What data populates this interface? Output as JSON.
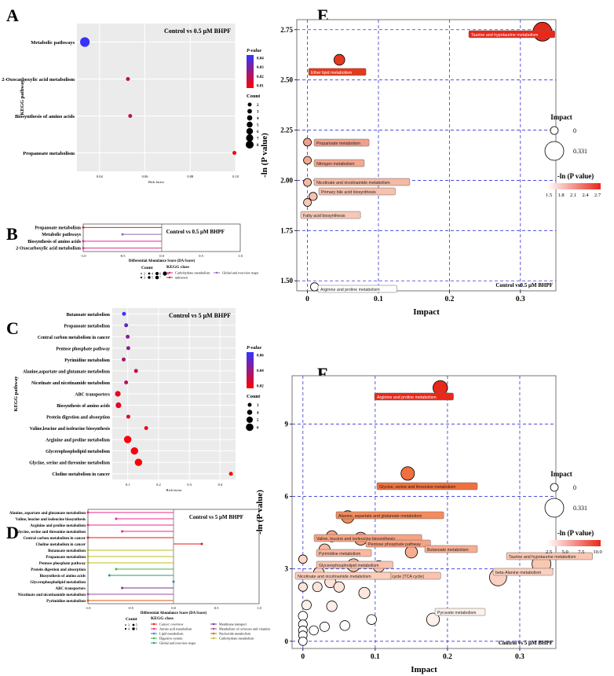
{
  "chart_data": [
    {
      "panel": "A",
      "type": "scatter",
      "subtitle": "Control vs 0.5 μM BHPF",
      "ylabel": "KEGG pathway",
      "xlabel": "Rich factor",
      "xlim": [
        0.03,
        0.1
      ],
      "xticks": [
        "0.04",
        "0.06",
        "0.08",
        "0.10"
      ],
      "categories": [
        "Metabolic pathways",
        "2-Oxocarboxylic acid metabolism",
        "Biosynthesis of amino acids",
        "Propanoate metabolism"
      ],
      "x": [
        0.0335,
        0.0525,
        0.0535,
        0.0995
      ],
      "count": [
        8,
        2,
        2,
        2
      ],
      "pvalue": [
        0.045,
        0.016,
        0.017,
        0.004
      ],
      "legend_p_title": "P-value",
      "legend_p_ticks": [
        "0.04",
        "0.03",
        "0.02",
        "0.01"
      ],
      "legend_count_title": "Count",
      "legend_count_values": [
        "2",
        "3",
        "4",
        "5",
        "6",
        "7",
        "8"
      ],
      "colors": {
        "low": "#ff0000",
        "high": "#3333ff"
      }
    },
    {
      "panel": "B",
      "type": "lollipop",
      "subtitle": "Control vs 0.5 μM BHPF",
      "xlabel": "Differential Abundance Score (DA Score)",
      "xlim": [
        -1.0,
        1.0
      ],
      "xticks": [
        "-1.0",
        "-0.5",
        "0.0",
        "0.5",
        "1.0"
      ],
      "categories": [
        "Propanoate metabolism",
        "Metabolic pathways",
        "Biosynthesis of amino acids",
        "2-Oxocarboxylic acid metabolism"
      ],
      "values": [
        -1.0,
        -0.5,
        -1.0,
        -1.0
      ],
      "classes": [
        "unknown",
        "Global and overview maps",
        "Carbohydrate metabolism",
        "Carbohydrate metabolism"
      ],
      "legend_count_title": "Count",
      "legend_count_values": [
        "2",
        "3",
        "4",
        "5",
        "6",
        "7",
        "8"
      ],
      "legend_class_title": "KEGG class",
      "legend_class": [
        {
          "name": "Carbohydrate metabolism",
          "color": "#e7298a"
        },
        {
          "name": "unknown",
          "color": "#d62728"
        },
        {
          "name": "Global and overview maps",
          "color": "#9467bd"
        }
      ]
    },
    {
      "panel": "C",
      "type": "scatter",
      "subtitle": "Control vs 5 μM BHPF",
      "ylabel": "KEGG pathway",
      "xlabel": "Rich factor",
      "xlim": [
        0.05,
        0.45
      ],
      "xticks": [
        "0.1",
        "0.2",
        "0.3",
        "0.4"
      ],
      "categories": [
        "Butanoate metabolism",
        "Propanoate metabolism",
        "Central carbon metabolism in cancer",
        "Pentose phosphate pathway",
        "Pyrimidine metabolism",
        "Alanine,aspartate and glutamate metabolism",
        "Nicotinate and nicotinamide metabolism",
        "ABC transporters",
        "Biosynthesis of amino acids",
        "Protein digestion and absorption",
        "Valine,leucine and isoleucine biosynthesis",
        "Arginine and proline metabolism",
        "Glycerophospholipid metabolism",
        "Glycine, serine and threonine metabolism",
        "Choline metabolism in cancer"
      ],
      "x": [
        0.088,
        0.095,
        0.1,
        0.102,
        0.087,
        0.127,
        0.095,
        0.068,
        0.07,
        0.102,
        0.16,
        0.1,
        0.122,
        0.135,
        0.435
      ],
      "count": [
        3,
        3,
        3,
        3,
        3,
        3,
        3,
        4,
        4,
        3,
        3,
        5,
        5,
        5,
        3
      ],
      "pvalue": [
        0.065,
        0.052,
        0.04,
        0.038,
        0.033,
        0.02,
        0.027,
        0.01,
        0.011,
        0.013,
        0.008,
        0.006,
        0.007,
        0.004,
        0.003
      ],
      "legend_p_title": "P-value",
      "legend_p_ticks": [
        "0.06",
        "0.04",
        "0.02"
      ],
      "legend_count_title": "Count",
      "legend_count_values": [
        "3",
        "4",
        "5",
        "6"
      ],
      "colors": {
        "low": "#ff0000",
        "high": "#3333ff"
      }
    },
    {
      "panel": "D",
      "type": "lollipop",
      "subtitle": "Control vs 5 μM BHPF",
      "xlabel": "Differential Abundance Score (DA Score)",
      "xlim": [
        -1.0,
        1.0
      ],
      "xticks": [
        "-1.0",
        "-0.5",
        "0.0",
        "0.5",
        "1.0"
      ],
      "categories": [
        "Alanine, aspartate and glutamate metabolism",
        "Valine, leucine and isoleucine biosynthesis",
        "Arginine and proline metabolism",
        "Glycine, serine and threonine metabolism",
        "Central carbon metabolism in cancer",
        "Choline metabolism in cancer",
        "Butanoate metabolism",
        "Propanoate metabolism",
        "Pentose phosphate pathway",
        "Protein digestion and absorption",
        "Biosynthesis of amino acids",
        "Glycerophospholipid metabolism",
        "ABC transporters",
        "Nicotinate and nicotinamide metabolism",
        "Pyrimidine metabolism"
      ],
      "values": [
        -1.0,
        -0.67,
        -1.0,
        -0.6,
        -1.0,
        0.33,
        -1.0,
        -1.0,
        -1.0,
        -0.67,
        -0.75,
        0.0,
        -0.6,
        -1.0,
        -1.0
      ],
      "classes": [
        "Amino acid metabolism",
        "Amino acid metabolism",
        "Amino acid metabolism",
        "Amino acid metabolism",
        "Cancer: overview",
        "Cancer: overview",
        "Carbohydrate metabolism",
        "Carbohydrate metabolism",
        "Carbohydrate metabolism",
        "Digestive system",
        "Global and overview maps",
        "Lipid metabolism",
        "Membrane transport",
        "Metabolism of cofactors and vitamins",
        "Nucleotide metabolism"
      ],
      "legend_count_title": "Count",
      "legend_count_values": [
        "3",
        "4",
        "5",
        "6"
      ],
      "legend_class_title": "KEGG class",
      "legend_class": [
        {
          "name": "Cancer: overview",
          "color": "#e41a1c"
        },
        {
          "name": "Amino acid metabolism",
          "color": "#e7298a"
        },
        {
          "name": "Lipid metabolism",
          "color": "#377eb8"
        },
        {
          "name": "Digestive system",
          "color": "#4daf4a"
        },
        {
          "name": "Global and overview maps",
          "color": "#1b9e77"
        },
        {
          "name": "Membrane transport",
          "color": "#7b3294"
        },
        {
          "name": "Metabolism of cofactors and vitamins",
          "color": "#984ea3"
        },
        {
          "name": "Nucleotide metabolism",
          "color": "#d95f02"
        },
        {
          "name": "Carbohydrate metabolism",
          "color": "#bcbd22"
        }
      ]
    },
    {
      "panel": "E",
      "type": "scatter",
      "xlabel": "Impact",
      "ylabel": "-ln (P value)",
      "annotation": "Control vs0.5 μM BHPF",
      "xlim": [
        -0.015,
        0.35
      ],
      "ylim": [
        1.45,
        2.8
      ],
      "xticks": [
        "0",
        "0.1",
        "0.2",
        "0.3"
      ],
      "yticks": [
        "1.50",
        "1.75",
        "2.00",
        "2.25",
        "2.50",
        "2.75"
      ],
      "points": [
        {
          "label": "Taurine and hypotaurine metabolism",
          "x": 0.331,
          "y": 2.74,
          "impact": 0.331,
          "color": "#e8281a"
        },
        {
          "label": "Ether lipid metabolism",
          "x": 0.045,
          "y": 2.6,
          "impact": 0.09,
          "color": "#e33a1e"
        },
        {
          "label": "Propanoate metabolism",
          "x": 0.0,
          "y": 2.19,
          "impact": 0.0,
          "color": "#f0a08a"
        },
        {
          "label": "Nitrogen metabolism",
          "x": 0.0,
          "y": 2.1,
          "impact": 0.0,
          "color": "#f2a88f"
        },
        {
          "label": "Nicotinate and nicotinamide metabolism",
          "x": 0.0,
          "y": 1.99,
          "impact": 0.0,
          "color": "#f5b9a4"
        },
        {
          "label": "Primary bile acid biosynthesis",
          "x": 0.008,
          "y": 1.92,
          "impact": 0.01,
          "color": "#f6c1ae"
        },
        {
          "label": "Fatty acid biosynthesis",
          "x": 0.0,
          "y": 1.89,
          "impact": 0.0,
          "color": "#f7c8b6"
        },
        {
          "label": "Arginine and proline metabolism",
          "x": 0.01,
          "y": 1.47,
          "impact": 0.01,
          "color": "#ffffff"
        }
      ],
      "legend_impact_title": "Impact",
      "legend_impact_values": [
        "0",
        "0.331"
      ],
      "legend_color_title": "-ln (P value)",
      "legend_color_ticks": [
        "1.5",
        "1.8",
        "2.1",
        "2.4",
        "2.7"
      ],
      "colors": {
        "low": "#ffffff",
        "high": "#e8281a"
      }
    },
    {
      "panel": "F",
      "type": "scatter",
      "xlabel": "Impact",
      "ylabel": "-ln (P value)",
      "annotation": "Control vs 5 μM BHPF",
      "xlim": [
        -0.015,
        0.35
      ],
      "ylim": [
        -0.3,
        11
      ],
      "xticks": [
        "0",
        "0.1",
        "0.2",
        "0.3"
      ],
      "yticks": [
        "0",
        "3",
        "6",
        "9"
      ],
      "points": [
        {
          "label": "Arginine and proline metabolism",
          "x": 0.19,
          "y": 10.5,
          "impact": 0.2,
          "color": "#e8281a"
        },
        {
          "label": "Glycine, serine and threonine metabolism",
          "x": 0.145,
          "y": 6.95,
          "impact": 0.17,
          "color": "#f0703e"
        },
        {
          "label": "Alanine, aspartate and glutamate metabolism",
          "x": 0.062,
          "y": 5.15,
          "impact": 0.14,
          "color": "#f58a5c"
        },
        {
          "label": "Valine, leucine and isoleucine biosynthesis",
          "x": 0.04,
          "y": 4.35,
          "impact": 0.1,
          "color": "#f7a383"
        },
        {
          "label": "Pentose phosphate pathway",
          "x": 0.08,
          "y": 4.25,
          "impact": 0.15,
          "color": "#f7a383"
        },
        {
          "label": "Butanoate metabolism",
          "x": 0.15,
          "y": 3.7,
          "impact": 0.13,
          "color": "#f8ad90"
        },
        {
          "label": "Pyrimidine metabolism",
          "x": 0.03,
          "y": 3.8,
          "impact": 0.1,
          "color": "#f9b8a0"
        },
        {
          "label": "Glycerophospholipid metabolism",
          "x": 0.07,
          "y": 3.15,
          "impact": 0.15,
          "color": "#fac3ae"
        },
        {
          "label": "Citrate cycle (TCA cycle)",
          "x": 0.105,
          "y": 3.1,
          "impact": 0.11,
          "color": "#fac3ae"
        },
        {
          "label": "Nicotinate and nicotinamide metabolism",
          "x": 0.022,
          "y": 2.85,
          "impact": 0.08,
          "color": "#fccfbd"
        },
        {
          "label": "Taurine and hypotaurine metabolism",
          "x": 0.33,
          "y": 3.2,
          "impact": 0.331,
          "color": "#fac7b2"
        },
        {
          "label": "beta-Alanine metabolism",
          "x": 0.27,
          "y": 2.65,
          "impact": 0.28,
          "color": "#fbd0c0"
        },
        {
          "label": "Pyruvate metabolism",
          "x": 0.18,
          "y": 0.9,
          "impact": 0.15,
          "color": "#fef1ec"
        },
        {
          "label": "",
          "x": 0.0,
          "y": 3.4,
          "impact": 0.02,
          "color": "#fbd5c7"
        },
        {
          "label": "",
          "x": 0.038,
          "y": 2.45,
          "impact": 0.1,
          "color": "#fde2d8"
        },
        {
          "label": "",
          "x": 0.05,
          "y": 2.25,
          "impact": 0.08,
          "color": "#fde4db"
        },
        {
          "label": "",
          "x": 0.085,
          "y": 2.0,
          "impact": 0.1,
          "color": "#fde6dd"
        },
        {
          "label": "",
          "x": 0.02,
          "y": 2.25,
          "impact": 0.05,
          "color": "#fde4db"
        },
        {
          "label": "",
          "x": 0.0,
          "y": 2.25,
          "impact": 0.03,
          "color": "#fde4db"
        },
        {
          "label": "",
          "x": 0.005,
          "y": 1.5,
          "impact": 0.05,
          "color": "#feeeea"
        },
        {
          "label": "",
          "x": 0.04,
          "y": 1.45,
          "impact": 0.08,
          "color": "#feeeea"
        },
        {
          "label": "",
          "x": 0.0,
          "y": 1.05,
          "impact": 0.04,
          "color": "#ffffff"
        },
        {
          "label": "",
          "x": 0.0,
          "y": 0.7,
          "impact": 0.03,
          "color": "#ffffff"
        },
        {
          "label": "",
          "x": 0.0,
          "y": 0.45,
          "impact": 0.03,
          "color": "#ffffff"
        },
        {
          "label": "",
          "x": 0.0,
          "y": 0.25,
          "impact": 0.02,
          "color": "#ffffff"
        },
        {
          "label": "",
          "x": 0.015,
          "y": 0.45,
          "impact": 0.04,
          "color": "#ffffff"
        },
        {
          "label": "",
          "x": 0.03,
          "y": 0.6,
          "impact": 0.05,
          "color": "#ffffff"
        },
        {
          "label": "",
          "x": 0.058,
          "y": 0.65,
          "impact": 0.06,
          "color": "#ffffff"
        },
        {
          "label": "",
          "x": 0.095,
          "y": 0.9,
          "impact": 0.06,
          "color": "#ffffff"
        },
        {
          "label": "",
          "x": 0.0,
          "y": 0.0,
          "impact": 0.02,
          "color": "#ffffff"
        }
      ],
      "legend_impact_title": "Impact",
      "legend_impact_values": [
        "0",
        "0.331"
      ],
      "legend_color_title": "-ln (P value)",
      "legend_color_ticks": [
        "2.5",
        "5.0",
        "7.5",
        "10.0"
      ],
      "colors": {
        "low": "#ffffff",
        "high": "#e8281a"
      }
    }
  ],
  "panel_letters": [
    "A",
    "B",
    "C",
    "D",
    "E",
    "F"
  ]
}
